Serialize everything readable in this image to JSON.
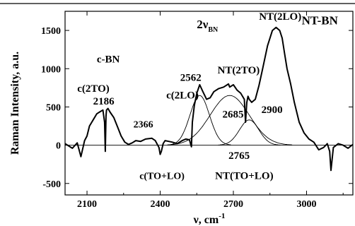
{
  "chart_data": {
    "type": "line",
    "xlabel": "ν, cm",
    "xlabel_sup": "-1",
    "ylabel": "Raman Intensity, a.u.",
    "xlim": [
      2010,
      3190
    ],
    "ylim": [
      -650,
      1750
    ],
    "x_ticks": [
      2100,
      2400,
      2700,
      3000
    ],
    "y_ticks": [
      -500,
      0,
      500,
      1000,
      1500
    ],
    "x_tick_labels": [
      "2100",
      "2400",
      "2700",
      "3000"
    ],
    "y_tick_labels": [
      "-500",
      "0",
      "500",
      "1000",
      "1500"
    ],
    "baseline": 0,
    "spectrum": {
      "x": [
        2010,
        2040,
        2060,
        2075,
        2090,
        2100,
        2110,
        2125,
        2140,
        2155,
        2165,
        2172,
        2175,
        2178,
        2180,
        2186,
        2195,
        2210,
        2225,
        2240,
        2255,
        2270,
        2285,
        2300,
        2320,
        2340,
        2366,
        2380,
        2395,
        2400,
        2405,
        2412,
        2420,
        2435,
        2450,
        2470,
        2490,
        2505,
        2520,
        2528,
        2532,
        2540,
        2550,
        2562,
        2575,
        2590,
        2605,
        2620,
        2640,
        2660,
        2680,
        2685,
        2700,
        2715,
        2730,
        2745,
        2750,
        2755,
        2760,
        2765,
        2775,
        2790,
        2805,
        2820,
        2840,
        2860,
        2875,
        2890,
        2900,
        2910,
        2920,
        2935,
        2950,
        2970,
        2990,
        3010,
        3030,
        3050,
        3070,
        3085,
        3095,
        3100,
        3110,
        3130,
        3150,
        3170,
        3190
      ],
      "y": [
        20,
        -40,
        30,
        -150,
        60,
        120,
        250,
        330,
        410,
        440,
        460,
        300,
        -80,
        380,
        460,
        480,
        430,
        360,
        240,
        120,
        40,
        10,
        30,
        60,
        50,
        80,
        90,
        60,
        -30,
        -120,
        -80,
        20,
        60,
        50,
        40,
        20,
        60,
        80,
        70,
        -20,
        300,
        520,
        680,
        790,
        700,
        600,
        620,
        700,
        740,
        760,
        800,
        760,
        790,
        720,
        680,
        600,
        300,
        560,
        640,
        600,
        560,
        600,
        780,
        1000,
        1300,
        1500,
        1540,
        1500,
        1400,
        1200,
        1000,
        800,
        560,
        300,
        160,
        80,
        40,
        -60,
        -30,
        20,
        -80,
        -330,
        -30,
        20,
        0,
        -40,
        10
      ]
    },
    "fit_peaks": [
      {
        "center": 2562,
        "amplitude": 650,
        "width": 40
      },
      {
        "center": 2685,
        "amplitude": 650,
        "width": 80
      },
      {
        "center": 2765,
        "amplitude": 330,
        "width": 40
      }
    ],
    "annotations": [
      {
        "text": "c-BN",
        "x": 2140,
        "y": 1080,
        "style": "ann"
      },
      {
        "text": "c(2TO)",
        "x": 2060,
        "y": 700,
        "style": "ann"
      },
      {
        "text": "2186",
        "x": 2125,
        "y": 530,
        "style": "ann"
      },
      {
        "text": "2366",
        "x": 2290,
        "y": 230,
        "style": "ann-small"
      },
      {
        "text": "c(TO+LO)",
        "x": 2315,
        "y": -440,
        "style": "ann-small"
      },
      {
        "text": "c(2LO)",
        "x": 2425,
        "y": 610,
        "style": "ann"
      },
      {
        "text": "2562",
        "x": 2482,
        "y": 840,
        "style": "ann"
      },
      {
        "text": "NT(2TO)",
        "x": 2635,
        "y": 940,
        "style": "ann"
      },
      {
        "text": "2685",
        "x": 2655,
        "y": 360,
        "style": "ann"
      },
      {
        "text": "2765",
        "x": 2680,
        "y": -180,
        "style": "ann"
      },
      {
        "text": "NT(TO+LO)",
        "x": 2625,
        "y": -440,
        "style": "ann"
      },
      {
        "text": "2900",
        "x": 2815,
        "y": 420,
        "style": "ann"
      },
      {
        "text": "NT(2LO)",
        "x": 2805,
        "y": 1960,
        "style": "ann"
      },
      {
        "text": "NT-BN",
        "x": 2980,
        "y": 1580,
        "style": "ann-big"
      }
    ],
    "two_nu_label": {
      "main": "2ν",
      "sub": "BN",
      "x": 2550,
      "y": 1530
    }
  }
}
